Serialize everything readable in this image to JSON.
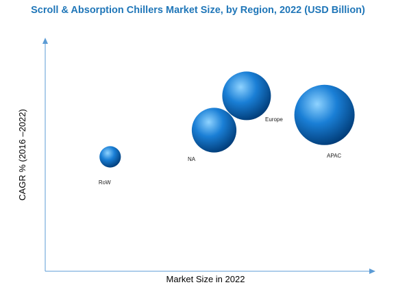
{
  "colors": {
    "title": "#1f76b8",
    "axis": "#5b9bd5",
    "bubble_light": "#8fd3ff",
    "bubble_mid": "#1a7fd6",
    "bubble_dark": "#003a75"
  },
  "chart_data": {
    "type": "bubble",
    "title": "Scroll & Absorption Chillers Market Size, by Region, 2022 (USD Billion)",
    "xlabel": "Market Size in 2022",
    "ylabel": "CAGR % (2016 –2022)",
    "grid": false,
    "legend": "none",
    "points": [
      {
        "label": "RoW",
        "x": 1.0,
        "y": 3.0,
        "size": 0.25
      },
      {
        "label": "NA",
        "x": 2.6,
        "y": 3.7,
        "size": 1.1
      },
      {
        "label": "Europe",
        "x": 3.1,
        "y": 4.6,
        "size": 1.3
      },
      {
        "label": "APAC",
        "x": 4.3,
        "y": 4.1,
        "size": 2.0
      }
    ]
  }
}
